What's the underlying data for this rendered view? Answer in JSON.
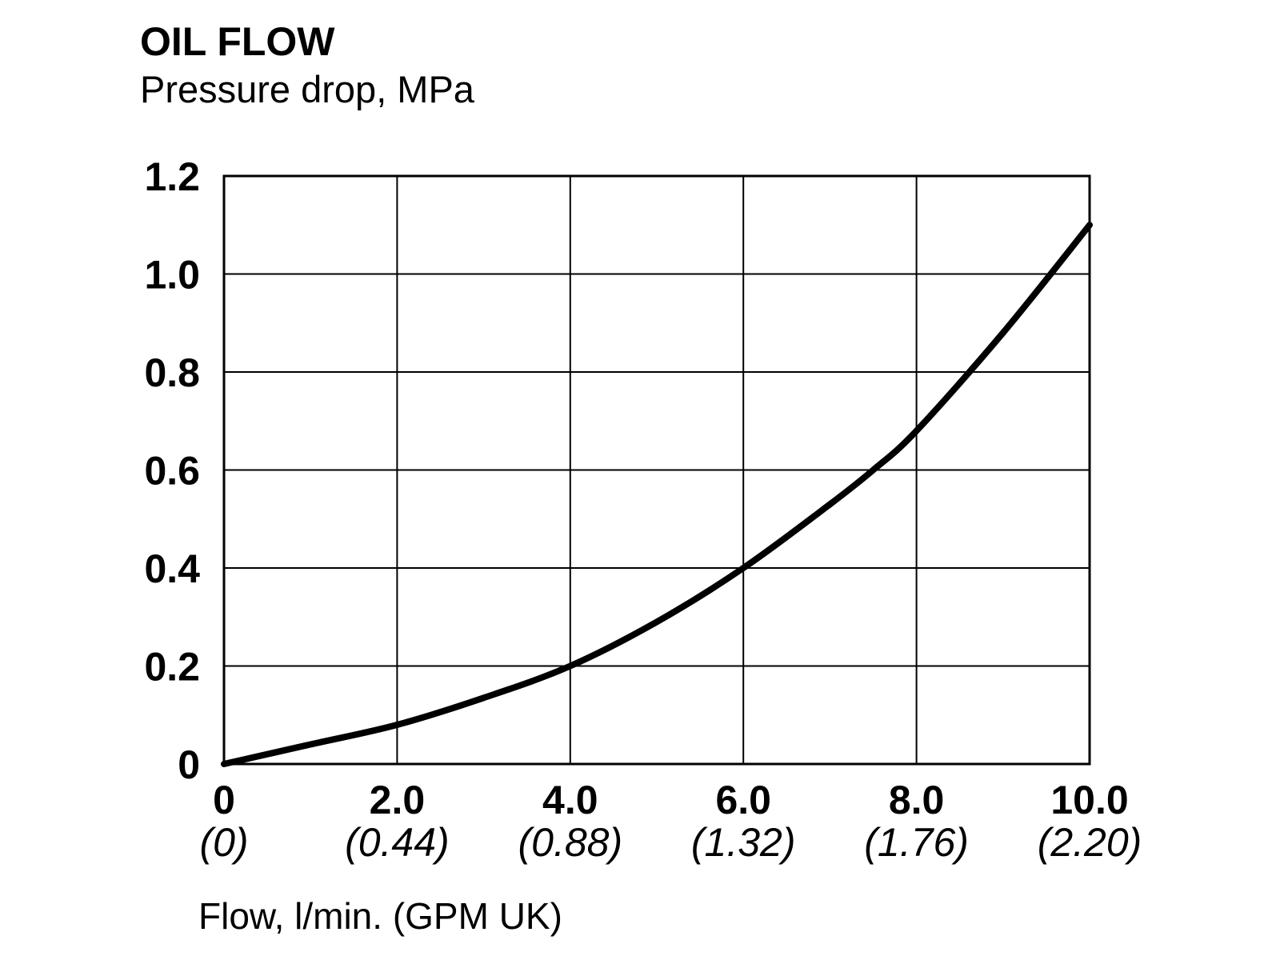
{
  "chart_data": {
    "type": "line",
    "title": "OIL FLOW",
    "ylabel": "Pressure drop, MPa",
    "xlabel": "Flow, l/min. (GPM UK)",
    "xlim": [
      0,
      10
    ],
    "ylim": [
      0,
      1.2
    ],
    "grid": true,
    "x_ticks": [
      {
        "value": 0,
        "label": "0",
        "secondary": "(0)"
      },
      {
        "value": 2,
        "label": "2.0",
        "secondary": "(0.44)"
      },
      {
        "value": 4,
        "label": "4.0",
        "secondary": "(0.88)"
      },
      {
        "value": 6,
        "label": "6.0",
        "secondary": "(1.32)"
      },
      {
        "value": 8,
        "label": "8.0",
        "secondary": "(1.76)"
      },
      {
        "value": 10,
        "label": "10.0",
        "secondary": "(2.20)"
      }
    ],
    "y_ticks": [
      {
        "value": 0,
        "label": "0"
      },
      {
        "value": 0.2,
        "label": "0.2"
      },
      {
        "value": 0.4,
        "label": "0.4"
      },
      {
        "value": 0.6,
        "label": "0.6"
      },
      {
        "value": 0.8,
        "label": "0.8"
      },
      {
        "value": 1.0,
        "label": "1.0"
      },
      {
        "value": 1.2,
        "label": "1.2"
      }
    ],
    "series": [
      {
        "x": [
          0,
          1,
          2,
          3,
          4,
          5,
          6,
          7,
          7.5,
          8,
          9,
          10
        ],
        "y": [
          0,
          0.04,
          0.08,
          0.135,
          0.2,
          0.29,
          0.4,
          0.53,
          0.6,
          0.68,
          0.88,
          1.1
        ]
      }
    ]
  }
}
